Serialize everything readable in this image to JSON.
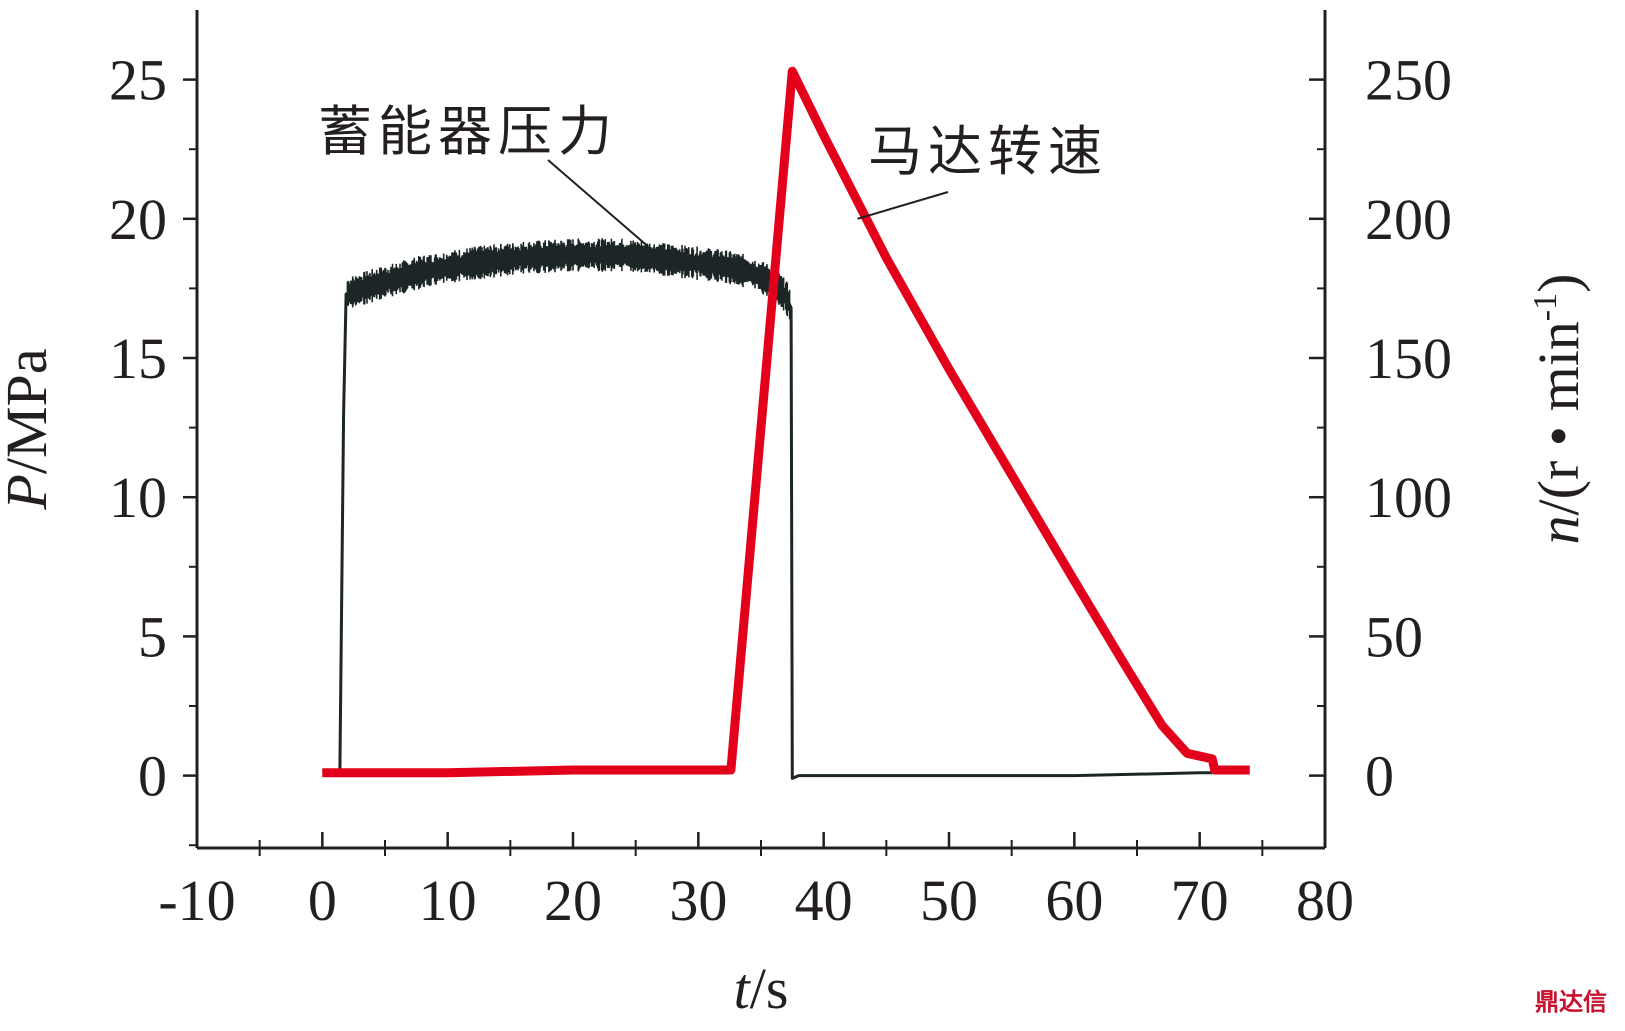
{
  "chart_data": {
    "type": "line",
    "title": "",
    "xlabel_var": "t",
    "xlabel_unit": "/s",
    "ylabel_left_var": "P",
    "ylabel_left_unit": "/MPa",
    "ylabel_right_var": "n",
    "ylabel_right_unit": "/(r • min",
    "ylabel_right_sup": "-1",
    "ylabel_right_close": ")",
    "xlim": [
      -10,
      80
    ],
    "ylim_left": [
      -2.6,
      27.5
    ],
    "ylim_right": [
      -26,
      275
    ],
    "x_ticks": [
      -10,
      0,
      10,
      20,
      30,
      40,
      50,
      60,
      70,
      80
    ],
    "x_tick_labels": [
      "-10",
      "0",
      "10",
      "20",
      "30",
      "40",
      "50",
      "60",
      "70",
      "80"
    ],
    "y_left_ticks": [
      0,
      5,
      10,
      15,
      20,
      25
    ],
    "y_left_tick_labels": [
      "0",
      "5",
      "10",
      "15",
      "20",
      "25"
    ],
    "y_right_ticks": [
      0,
      50,
      100,
      150,
      200,
      250
    ],
    "y_right_tick_labels": [
      "0",
      "50",
      "100",
      "150",
      "200",
      "250"
    ],
    "series": [
      {
        "name": "蓄能器压力",
        "axis": "left",
        "color": "#1c2626",
        "x": [
          0,
          1.4,
          1.7,
          1.9,
          4,
          8,
          12,
          16,
          20,
          24,
          28,
          32,
          34,
          36,
          37,
          37.4,
          37.5,
          38,
          40,
          50,
          60,
          70,
          71
        ],
        "y": [
          0.2,
          0.2,
          13,
          17.3,
          17.6,
          18.1,
          18.4,
          18.6,
          18.7,
          18.7,
          18.5,
          18.3,
          18.1,
          17.7,
          17.2,
          16.8,
          -0.1,
          0,
          0,
          0,
          0,
          0.1,
          0.1
        ]
      },
      {
        "name": "马达转速",
        "axis": "right",
        "color": "#e2001a",
        "x": [
          0,
          10,
          20,
          32.6,
          37.5,
          40,
          45,
          50,
          55,
          60,
          64,
          67,
          69,
          71,
          71.2,
          74
        ],
        "y": [
          1,
          1,
          2,
          2,
          253,
          230,
          186,
          146,
          108,
          70,
          40,
          18,
          8,
          6,
          2,
          2
        ]
      }
    ],
    "annotations": [
      {
        "text": "蓄能器压力",
        "series": 0,
        "x": 26,
        "y": 19.0
      },
      {
        "text": "马达转速",
        "series": 1,
        "x": 42.7,
        "y": 200
      }
    ]
  },
  "watermark": "鼎达信"
}
